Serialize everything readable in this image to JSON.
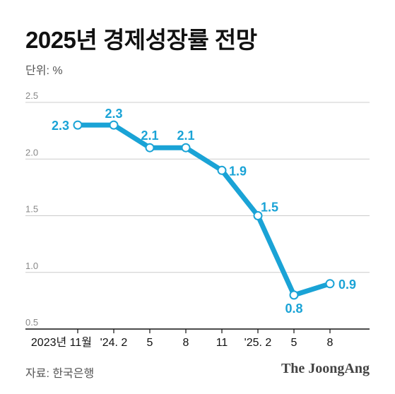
{
  "title": "2025년 경제성장률 전망",
  "unit_label": "단위: %",
  "source": "자료: 한국은행",
  "brand": "The JoongAng",
  "colors": {
    "line": "#1aa3d6",
    "label": "#1aa3d6",
    "grid": "#cccccc",
    "axis": "#111111",
    "tick_text": "#888888"
  },
  "chart_data": {
    "type": "line",
    "title": "2025년 경제성장률 전망",
    "ylabel": "단위: %",
    "xlabel": "",
    "ylim": [
      0.5,
      2.5
    ],
    "yticks": [
      "0.5",
      "1.0",
      "1.5",
      "2.0",
      "2.5"
    ],
    "categories": [
      "2023년 11월",
      "'24. 2",
      "5",
      "8",
      "11",
      "'25. 2",
      "5",
      "8"
    ],
    "series": [
      {
        "values": [
          2.3,
          2.3,
          2.1,
          2.1,
          1.9,
          1.5,
          0.8,
          0.9
        ],
        "labels": [
          "2.3",
          "2.3",
          "2.1",
          "2.1",
          "1.9",
          "1.5",
          "0.8",
          "0.9"
        ]
      }
    ],
    "grid": true,
    "legend": "none"
  }
}
